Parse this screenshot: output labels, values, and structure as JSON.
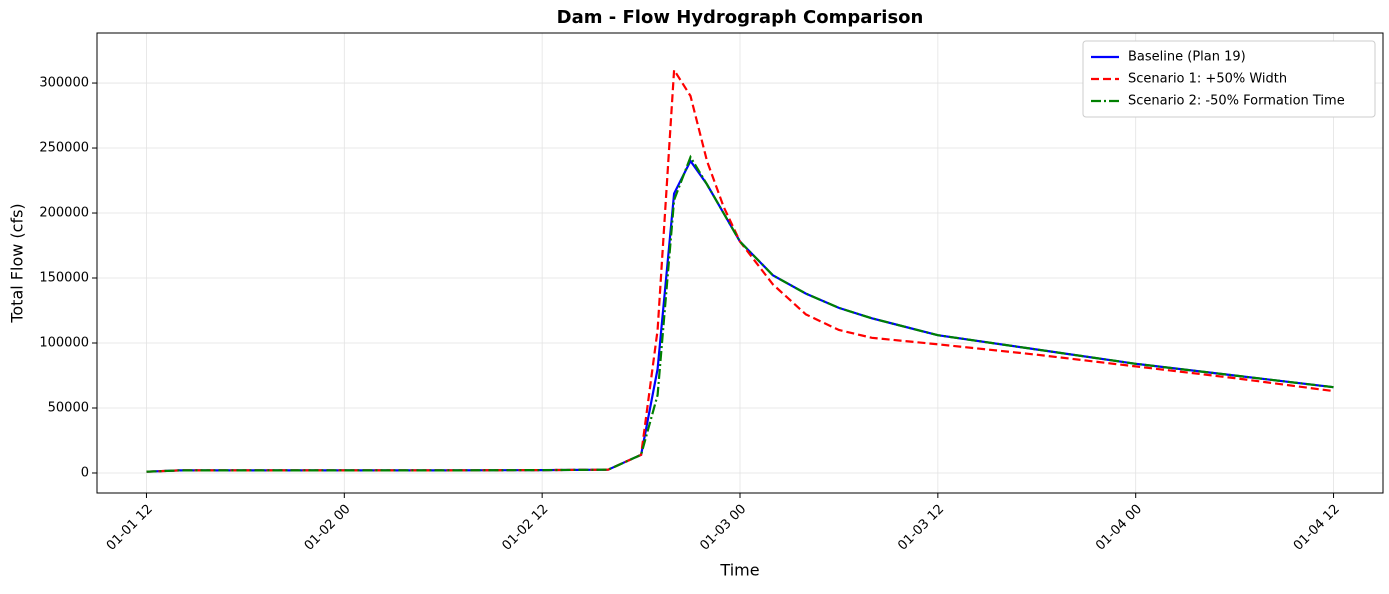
{
  "chart_data": {
    "type": "line",
    "title": "Dam - Flow Hydrograph Comparison",
    "xlabel": "Time",
    "ylabel": "Total Flow (cfs)",
    "x": [
      "01-01 12",
      "01-01 14",
      "01-01 18",
      "01-02 00",
      "01-02 06",
      "01-02 12",
      "01-02 16",
      "01-02 18",
      "01-02 19",
      "01-02 20",
      "01-02 21",
      "01-02 22",
      "01-02 23",
      "01-03 00",
      "01-03 02",
      "01-03 04",
      "01-03 06",
      "01-03 08",
      "01-03 12",
      "01-03 18",
      "01-04 00",
      "01-04 06",
      "01-04 12"
    ],
    "series": [
      {
        "name": "Baseline (Plan 19)",
        "color": "#0000ff",
        "linestyle": "solid",
        "values": [
          1000,
          2000,
          2000,
          2000,
          2000,
          2200,
          2500,
          14000,
          80000,
          215000,
          240000,
          222000,
          200000,
          178000,
          152000,
          138000,
          127000,
          119000,
          106000,
          95000,
          84000,
          75000,
          66000
        ]
      },
      {
        "name": "Scenario 1: +50% Width",
        "color": "#ff0000",
        "linestyle": "dashed",
        "values": [
          1000,
          2000,
          2000,
          2000,
          2000,
          2200,
          2500,
          14000,
          110000,
          310000,
          290000,
          240000,
          205000,
          178000,
          145000,
          122000,
          110000,
          104000,
          99000,
          91000,
          82000,
          73000,
          63000
        ]
      },
      {
        "name": "Scenario 2: -50% Formation Time",
        "color": "#008000",
        "linestyle": "dashdot",
        "values": [
          1000,
          2000,
          2000,
          2000,
          2000,
          2200,
          2500,
          14000,
          60000,
          210000,
          243000,
          222000,
          200000,
          178000,
          152000,
          138000,
          127000,
          119000,
          106000,
          95000,
          84000,
          75000,
          66000
        ]
      }
    ],
    "xlim": [
      "01-01 09",
      "01-04 15"
    ],
    "xticks": [
      "01-01 12",
      "01-02 00",
      "01-02 12",
      "01-03 00",
      "01-03 12",
      "01-04 00",
      "01-04 12"
    ],
    "ylim": [
      -15400,
      338500
    ],
    "yticks": [
      0,
      50000,
      100000,
      150000,
      200000,
      250000,
      300000
    ],
    "grid": true,
    "legend": "upper right"
  }
}
